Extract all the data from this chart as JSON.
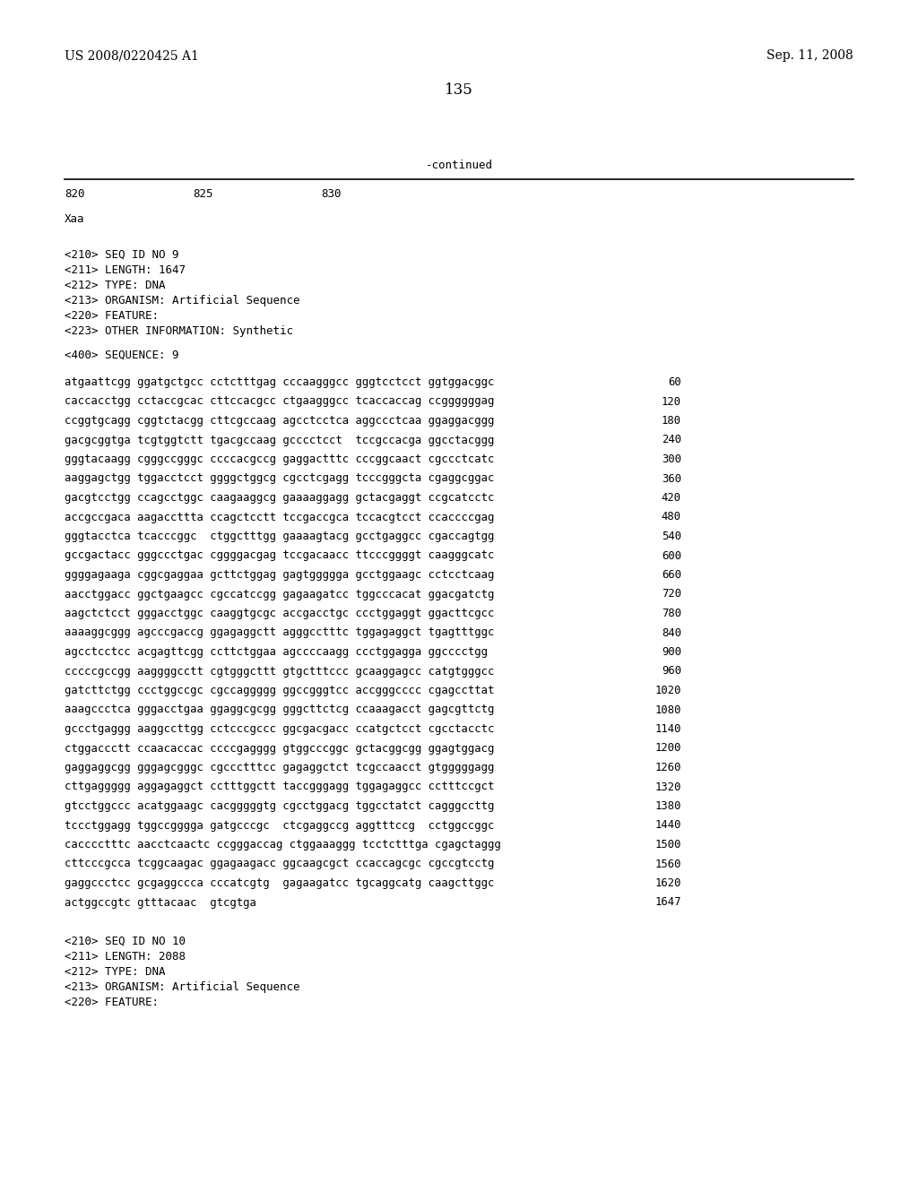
{
  "header_left": "US 2008/0220425 A1",
  "header_right": "Sep. 11, 2008",
  "page_number": "135",
  "continued_label": "-continued",
  "ruler_labels": [
    "820",
    "825",
    "830"
  ],
  "xaa_label": "Xaa",
  "meta_lines": [
    "<210> SEQ ID NO 9",
    "<211> LENGTH: 1647",
    "<212> TYPE: DNA",
    "<213> ORGANISM: Artificial Sequence",
    "<220> FEATURE:",
    "<223> OTHER INFORMATION: Synthetic"
  ],
  "seq_header": "<400> SEQUENCE: 9",
  "sequence_lines": [
    [
      "atgaattcgg ggatgctgcc cctctttgag cccaagggcc gggtcctcct ggtggacggc",
      "60"
    ],
    [
      "caccacctgg cctaccgcac cttccacgcc ctgaagggcc tcaccaccag ccggggggag",
      "120"
    ],
    [
      "ccggtgcagg cggtctacgg cttcgccaag agcctcctca aggccctcaa ggaggacggg",
      "180"
    ],
    [
      "gacgcggtga tcgtggtctt tgacgccaag gcccctcct  tccgccacga ggcctacggg",
      "240"
    ],
    [
      "gggtacaagg cgggccgggc ccccacgccg gaggactttc cccggcaact cgccctcatc",
      "300"
    ],
    [
      "aaggagctgg tggacctcct ggggctggcg cgcctcgagg tcccgggcta cgaggcggac",
      "360"
    ],
    [
      "gacgtcctgg ccagcctggc caagaaggcg gaaaaggagg gctacgaggt ccgcatcctc",
      "420"
    ],
    [
      "accgccgaca aagaccttta ccagctcctt tccgaccgca tccacgtcct ccaccccgag",
      "480"
    ],
    [
      "gggtacctca tcacccggc  ctggctttgg gaaaagtacg gcctgaggcc cgaccagtgg",
      "540"
    ],
    [
      "gccgactacc gggccctgac cggggacgag tccgacaacc ttcccggggt caagggcatc",
      "600"
    ],
    [
      "ggggagaaga cggcgaggaa gcttctggag gagtggggga gcctggaagc cctcctcaag",
      "660"
    ],
    [
      "aacctggacc ggctgaagcc cgccatccgg gagaagatcc tggcccacat ggacgatctg",
      "720"
    ],
    [
      "aagctctcct gggacctggc caaggtgcgc accgacctgc ccctggaggt ggacttcgcc",
      "780"
    ],
    [
      "aaaaggcggg agcccgaccg ggagaggctt agggcctttc tggagaggct tgagtttggc",
      "840"
    ],
    [
      "agcctcctcc acgagttcgg ccttctggaa agccccaagg ccctggagga ggcccctgg",
      "900"
    ],
    [
      "cccccgccgg aaggggcctt cgtgggcttt gtgctttccc gcaaggagcc catgtgggcc",
      "960"
    ],
    [
      "gatcttctgg ccctggccgc cgccaggggg ggccgggtcc accgggcccc cgagccttat",
      "1020"
    ],
    [
      "aaagccctca gggacctgaa ggaggcgcgg gggcttctcg ccaaagacct gagcgttctg",
      "1080"
    ],
    [
      "gccctgaggg aaggccttgg cctcccgccc ggcgacgacc ccatgctcct cgcctacctc",
      "1140"
    ],
    [
      "ctggaccctt ccaacaccac ccccgagggg gtggcccggc gctacggcgg ggagtggacg",
      "1200"
    ],
    [
      "gaggaggcgg gggagcgggc cgccctttcc gagaggctct tcgccaacct gtgggggagg",
      "1260"
    ],
    [
      "cttgaggggg aggagaggct cctttggctt taccgggagg tggagaggcc cctttccgct",
      "1320"
    ],
    [
      "gtcctggccc acatggaagc cacgggggtg cgcctggacg tggcctatct cagggccttg",
      "1380"
    ],
    [
      "tccctggagg tggccgggga gatgcccgc  ctcgaggccg aggtttccg  cctggccggc",
      "1440"
    ],
    [
      "cacccctttc aacctcaactc ccgggaccag ctggaaaggg tcctctttga cgagctaggg",
      "1500"
    ],
    [
      "cttcccgcca tcggcaagac ggagaagacc ggcaagcgct ccaccagcgc cgccgtcctg",
      "1560"
    ],
    [
      "gaggccctcc gcgaggccca cccatcgtg  gagaagatcc tgcaggcatg caagcttggc",
      "1620"
    ],
    [
      "actggccgtc gtttacaac  gtcgtga",
      "1647"
    ]
  ],
  "footer_meta": [
    "<210> SEQ ID NO 10",
    "<211> LENGTH: 2088",
    "<212> TYPE: DNA",
    "<213> ORGANISM: Artificial Sequence",
    "<220> FEATURE:"
  ],
  "bg_color": "#ffffff",
  "text_color": "#000000"
}
